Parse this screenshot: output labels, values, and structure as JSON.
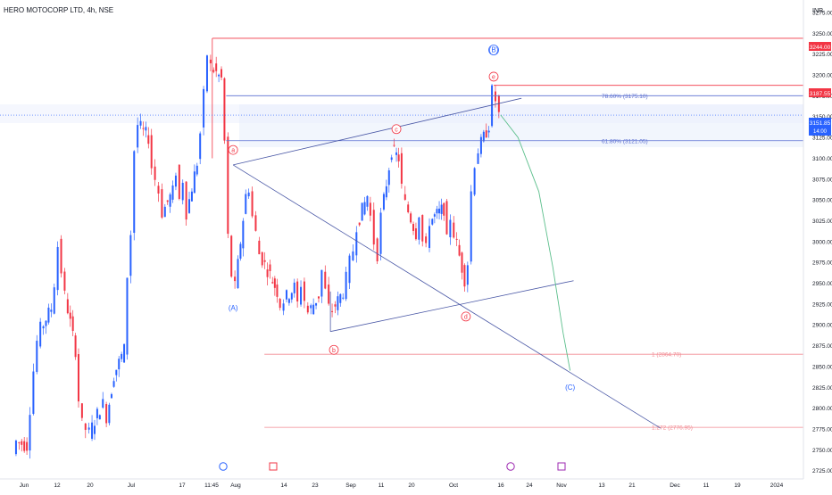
{
  "header": {
    "symbol_title": "HERO MOTOCORP LTD, 4h, NSE",
    "currency": "INR"
  },
  "price_axis": {
    "ticks": [
      "3275.00",
      "3250.00",
      "3225.00",
      "3200.00",
      "3175.00",
      "3150.00",
      "3125.00",
      "3100.00",
      "3075.00",
      "3050.00",
      "3025.00",
      "3000.00",
      "2975.00",
      "2950.00",
      "2925.00",
      "2900.00",
      "2875.00",
      "2850.00",
      "2825.00",
      "2800.00",
      "2775.00",
      "2750.00",
      "2725.00"
    ],
    "label_high": "3244.00",
    "label_level": "3187.55",
    "label_last": "3151.85",
    "label_countdown": "14:00"
  },
  "time_axis": {
    "labels": [
      "Jun",
      "12",
      "20",
      "Jul",
      "17",
      "11:45",
      "Aug",
      "14",
      "23",
      "Sep",
      "11",
      "20",
      "Oct",
      "16",
      "24",
      "Nov",
      "13",
      "21",
      "Dec",
      "11",
      "19",
      "2024"
    ]
  },
  "fib_labels": {
    "f786": "78.60% (3175.10)",
    "f618": "61.80% (3121.05)",
    "f1": "1 (2864.70)",
    "f1272": "1.272 (2776.95)"
  },
  "wave_labels": {
    "A": "(A)",
    "B": "(B)",
    "C": "(C)",
    "a": "a",
    "b": "b",
    "c": "c",
    "d": "d",
    "e": "e"
  },
  "event_markers": [
    "D",
    "E",
    "D",
    "E",
    "E"
  ],
  "colors": {
    "up_candle": "#2962ff",
    "down_candle": "#f23645",
    "fib_blue": "#5b6fd1",
    "fib_red": "#f28a92",
    "trendline": "#4a58a6",
    "projection": "#5cbf8c",
    "last_price": "#2962ff",
    "high_line": "#f23645"
  },
  "chart_data": {
    "type": "candlestick",
    "title": "HERO MOTOCORP LTD, 4h, NSE",
    "y_range": [
      2715,
      3290
    ],
    "x_range": [
      "2023-06-01",
      "2024-01-08"
    ],
    "last_price": 3151.85,
    "high_level": 3244.0,
    "resistance_level": 3187.55,
    "fib_levels": [
      {
        "label": "78.60% (3175.10)",
        "value": 3175.1
      },
      {
        "label": "61.80% (3121.05)",
        "value": 3121.05
      },
      {
        "label": "1 (2864.70)",
        "value": 2864.7
      },
      {
        "label": "1.272 (2776.95)",
        "value": 2776.95
      }
    ],
    "price_path": [
      [
        "2023-06-01",
        2745
      ],
      [
        "2023-06-02",
        2760
      ],
      [
        "2023-06-05",
        2755
      ],
      [
        "2023-06-06",
        2800
      ],
      [
        "2023-06-07",
        2845
      ],
      [
        "2023-06-08",
        2880
      ],
      [
        "2023-06-09",
        2895
      ],
      [
        "2023-06-12",
        2920
      ],
      [
        "2023-06-13",
        2950
      ],
      [
        "2023-06-14",
        2995
      ],
      [
        "2023-06-15",
        2965
      ],
      [
        "2023-06-16",
        2935
      ],
      [
        "2023-06-19",
        2870
      ],
      [
        "2023-06-20",
        2810
      ],
      [
        "2023-06-21",
        2780
      ],
      [
        "2023-06-22",
        2775
      ],
      [
        "2023-06-23",
        2770
      ],
      [
        "2023-06-26",
        2800
      ],
      [
        "2023-06-27",
        2805
      ],
      [
        "2023-06-28",
        2790
      ],
      [
        "2023-06-30",
        2840
      ],
      [
        "2023-07-03",
        2870
      ],
      [
        "2023-07-04",
        2960
      ],
      [
        "2023-07-05",
        3010
      ],
      [
        "2023-07-06",
        3110
      ],
      [
        "2023-07-07",
        3140
      ],
      [
        "2023-07-10",
        3125
      ],
      [
        "2023-07-11",
        3090
      ],
      [
        "2023-07-12",
        3075
      ],
      [
        "2023-07-13",
        3060
      ],
      [
        "2023-07-14",
        3035
      ],
      [
        "2023-07-17",
        3060
      ],
      [
        "2023-07-18",
        3085
      ],
      [
        "2023-07-19",
        3050
      ],
      [
        "2023-07-20",
        3075
      ],
      [
        "2023-07-21",
        3035
      ],
      [
        "2023-07-24",
        3095
      ],
      [
        "2023-07-25",
        3130
      ],
      [
        "2023-07-26",
        3175
      ],
      [
        "2023-07-27",
        3225
      ],
      [
        "2023-07-28",
        3210
      ],
      [
        "2023-07-31",
        3195
      ],
      [
        "2023-08-01",
        3120
      ],
      [
        "2023-08-02",
        3005
      ],
      [
        "2023-08-03",
        2960
      ],
      [
        "2023-08-04",
        2945
      ],
      [
        "2023-08-07",
        3055
      ],
      [
        "2023-08-08",
        3065
      ],
      [
        "2023-08-09",
        3030
      ],
      [
        "2023-08-10",
        3010
      ],
      [
        "2023-08-11",
        2985
      ],
      [
        "2023-08-14",
        2960
      ],
      [
        "2023-08-16",
        2940
      ],
      [
        "2023-08-17",
        2925
      ],
      [
        "2023-08-18",
        2930
      ],
      [
        "2023-08-21",
        2945
      ],
      [
        "2023-08-22",
        2925
      ],
      [
        "2023-08-23",
        2950
      ],
      [
        "2023-08-24",
        2930
      ],
      [
        "2023-08-25",
        2915
      ],
      [
        "2023-08-28",
        2935
      ],
      [
        "2023-08-29",
        2965
      ],
      [
        "2023-08-30",
        2940
      ],
      [
        "2023-08-31",
        2920
      ],
      [
        "2023-09-01",
        2918
      ],
      [
        "2023-09-04",
        2940
      ],
      [
        "2023-09-05",
        2955
      ],
      [
        "2023-09-06",
        2975
      ],
      [
        "2023-09-07",
        2990
      ],
      [
        "2023-09-08",
        3020
      ],
      [
        "2023-09-11",
        3055
      ],
      [
        "2023-09-12",
        3030
      ],
      [
        "2023-09-13",
        3000
      ],
      [
        "2023-09-14",
        2985
      ],
      [
        "2023-09-15",
        3030
      ],
      [
        "2023-09-18",
        3110
      ],
      [
        "2023-09-20",
        3100
      ],
      [
        "2023-09-21",
        3065
      ],
      [
        "2023-09-22",
        3045
      ],
      [
        "2023-09-25",
        3010
      ],
      [
        "2023-09-26",
        3035
      ],
      [
        "2023-09-27",
        3000
      ],
      [
        "2023-09-28",
        2990
      ],
      [
        "2023-09-29",
        3025
      ],
      [
        "2023-10-03",
        3040
      ],
      [
        "2023-10-04",
        3000
      ],
      [
        "2023-10-05",
        3030
      ],
      [
        "2023-10-06",
        3010
      ],
      [
        "2023-10-09",
        2955
      ],
      [
        "2023-10-10",
        2975
      ],
      [
        "2023-10-11",
        3060
      ],
      [
        "2023-10-12",
        3095
      ],
      [
        "2023-10-13",
        3110
      ],
      [
        "2023-10-16",
        3140
      ],
      [
        "2023-10-17",
        3180
      ],
      [
        "2023-10-18",
        3170
      ],
      [
        "2023-10-19",
        3152
      ]
    ],
    "projection": [
      [
        "2023-10-19",
        3152
      ],
      [
        "2023-10-24",
        3125
      ],
      [
        "2023-10-30",
        3060
      ],
      [
        "2023-11-03",
        2970
      ],
      [
        "2023-11-06",
        2890
      ],
      [
        "2023-11-08",
        2845
      ]
    ],
    "trendlines": [
      {
        "from": [
          "2023-08-03",
          3092
        ],
        "to": [
          "2023-10-25",
          3172
        ]
      },
      {
        "from": [
          "2023-08-03",
          3092
        ],
        "to": [
          "2023-12-04",
          2776
        ]
      },
      {
        "from": [
          "2023-08-31",
          2892
        ],
        "to": [
          "2023-11-09",
          2953
        ]
      }
    ],
    "wave_points": [
      {
        "label": "(A)",
        "x": "2023-08-03",
        "y": 2920
      },
      {
        "label": "a",
        "x": "2023-08-03",
        "y": 3110
      },
      {
        "label": "b",
        "x": "2023-09-01",
        "y": 2870
      },
      {
        "label": "c",
        "x": "2023-09-19",
        "y": 3135
      },
      {
        "label": "d",
        "x": "2023-10-09",
        "y": 2910
      },
      {
        "label": "e",
        "x": "2023-10-17",
        "y": 3198
      },
      {
        "label": "(B)",
        "x": "2023-10-17",
        "y": 3230
      },
      {
        "label": "(C)",
        "x": "2023-11-08",
        "y": 2825
      }
    ]
  }
}
